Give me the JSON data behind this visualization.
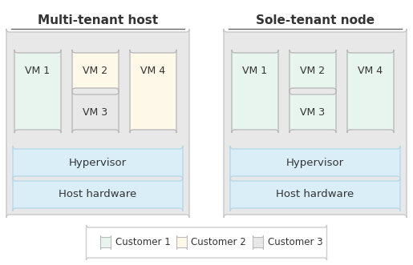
{
  "bg_color": "#ffffff",
  "panel_bg": "#e8e8e8",
  "panel_border": "#c8c8c8",
  "hypervisor_color": "#daeef8",
  "hardware_color": "#daeef8",
  "hyp_edge": "#b8d8e8",
  "customer1_color": "#e8f5ee",
  "customer2_color": "#fdf8e8",
  "customer3_color": "#e8e8e8",
  "vm_border": "#bbbbbb",
  "title_left": "Multi-tenant host",
  "title_right": "Sole-tenant node",
  "legend_items": [
    {
      "label": "Customer 1",
      "color": "#e8f5ee"
    },
    {
      "label": "Customer 2",
      "color": "#fdf8e8"
    },
    {
      "label": "Customer 3",
      "color": "#e8e8e8"
    }
  ],
  "text_color": "#333333",
  "line_color": "#666666",
  "legend_border": "#cccccc"
}
